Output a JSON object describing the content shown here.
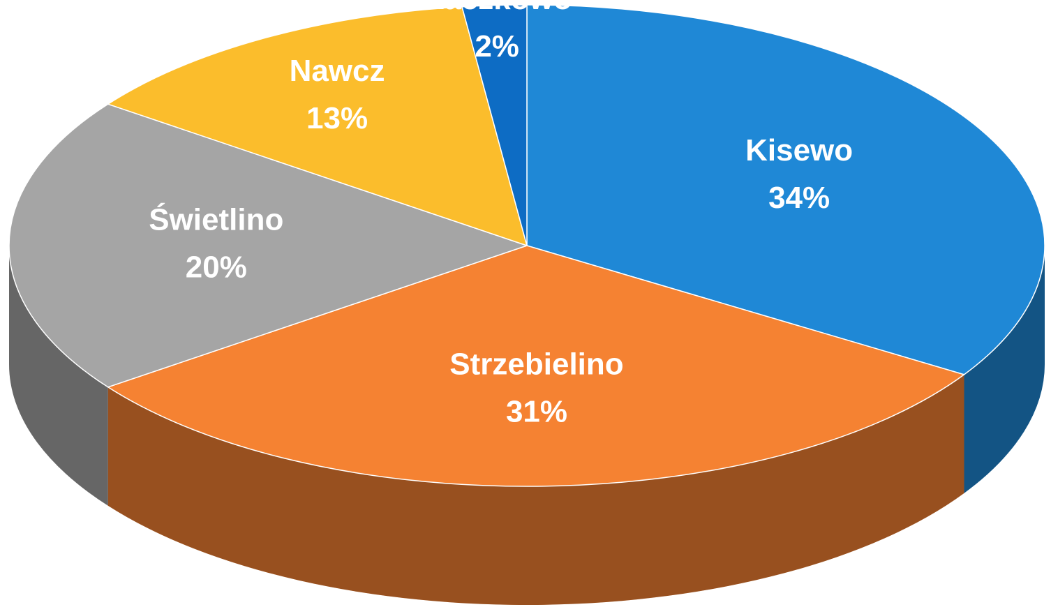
{
  "chart_data": {
    "type": "pie",
    "categories": [
      "Kisewo",
      "Strzebielino",
      "Świetlino",
      "Nawcz",
      "Kaczkowo"
    ],
    "values": [
      34,
      31,
      20,
      13,
      2
    ],
    "value_labels": [
      "34%",
      "31%",
      "20%",
      "13%",
      "2%"
    ],
    "colors": [
      "#1f88d6",
      "#f58232",
      "#a5a5a5",
      "#fbbd2c",
      "#0d6cc4"
    ]
  }
}
